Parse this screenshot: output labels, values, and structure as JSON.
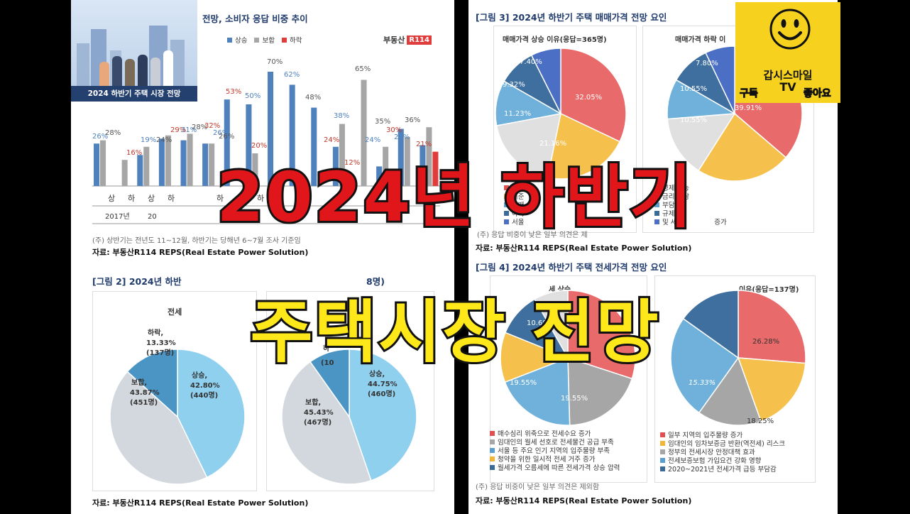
{
  "thumbnail": {
    "title_line1": "2024년 하반기",
    "title_line2": "주택시장 전망"
  },
  "logo_box": {
    "caption": "2024 하반기 주택 시장 전망"
  },
  "channel_badge": {
    "name": "갑시스마일",
    "name2": "TV",
    "subscribe": "구독",
    "like": "좋아요"
  },
  "fig1": {
    "caption": "전망, 소비자 응답 비중 추이",
    "legend": [
      "상승",
      "보합",
      "하락"
    ],
    "brand": "부동산",
    "brand2": "R114",
    "labels_visible": [
      "26%",
      "28%",
      "16%",
      "19%",
      "24%",
      "29%",
      "31%",
      "28%",
      "32%",
      "26%",
      "26%",
      "53%",
      "50%",
      "70%",
      "20%",
      "62%",
      "48%",
      "24%",
      "38%",
      "65%",
      "12%",
      "24%",
      "35%",
      "30%",
      "25%",
      "36%",
      "21%"
    ],
    "x_labels": [
      "상",
      "하",
      "상",
      "하",
      "하",
      "하",
      "하",
      "하"
    ],
    "year_label": "2017년",
    "year_label2": "20",
    "year_label3": "2",
    "note": "(주) 상반기는 전년도 11~12월, 하반기는 당해년 6~7월 조사 기준임",
    "source": "자료: 부동산R114 REPS(Real Estate Power Solution)"
  },
  "fig2": {
    "caption_left": "[그림 2] 2024년 하반",
    "caption_right": "8명)",
    "pie1_title": "전세",
    "pie1": [
      {
        "label": "하락,",
        "pct": "13.33%",
        "count": "(137명)"
      },
      {
        "label": "보합,",
        "pct": "43.87%",
        "count": "(451명)"
      },
      {
        "label": "상승,",
        "pct": "42.80%",
        "count": "(440명)"
      }
    ],
    "pie2": [
      {
        "label": "하",
        "pct": "",
        "count": "(10"
      },
      {
        "label": "보합,",
        "pct": "45.43%",
        "count": "(467명)"
      },
      {
        "label": "상승,",
        "pct": "44.75%",
        "count": "(460명)"
      }
    ],
    "source": "자료: 부동산R114 REPS(Real Estate Power Solution)"
  },
  "fig3": {
    "caption": "[그림 3] 2024년 하반기 주택 매매가격 전망 요인",
    "pie1_title": "매매가격 상승 이유(응답=365명)",
    "pie1_labels": [
      "32.05%",
      "21.16%",
      "11.23%",
      "9.32%",
      "7.40%"
    ],
    "pie1_legend": [
      "핵심",
      "기준",
      "급매",
      "아파",
      "서울"
    ],
    "pie2_title": "매매가격 하락 이",
    "pie2_labels": [
      "39.91%",
      "10.55%",
      "10.55%",
      "7.80%"
    ],
    "pie2_legend": [
      "경제 가능",
      "금리 부담",
      "부담에",
      "규제로",
      "및 세금"
    ],
    "pie2_legend_tail": "증가",
    "note": "(주) 응답 비중이 낮은 일부 의견은 제",
    "source": "자료: 부동산R114 REPS(Real Estate Power Solution)"
  },
  "fig4": {
    "caption": "[그림 4] 2024년 하반기 주택 전세가격 전망 요인",
    "pie1_title": "세 상승",
    "pie1_labels": [
      "10.68%",
      "19.55%",
      "19.55%"
    ],
    "pie1_legend": [
      "매수심리 위축으로 전세수요 증가",
      "임대인의 월세 선호로 전세물건 공급 부족",
      "서울 등 주요 인기 지역의 입주물량 부족",
      "청약을 위한 일시적 전세 거주 증가",
      "월세가격 오름세에 따른 전세가격 상승 압력"
    ],
    "pie2_title": "이유(응답=137명)",
    "pie2_labels": [
      "26.28%",
      "15.33%",
      "18.25%"
    ],
    "pie2_legend": [
      "일부 지역의 입주물량 증가",
      "임대인의 임차보증금 반환(역전세) 리스크",
      "정부의 전세시장 안정대책 효과",
      "전세보증보험 가입요건 강화 영향",
      "2020~2021년 전세가격 급등 부담감"
    ],
    "note": "(주) 응답 비중이 낮은 일부 의견은 제외함",
    "source": "자료: 부동산R114 REPS(Real Estate Power Solution)"
  },
  "colors": {
    "rise": "#4f81bd",
    "flat": "#a6a6a6",
    "fall": "#e03c3c",
    "title_red": "#e1161b",
    "title_yellow": "#ffe81a"
  }
}
